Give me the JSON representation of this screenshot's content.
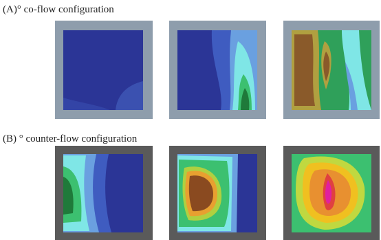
{
  "figure": {
    "rows": [
      {
        "label": "(A)° co-flow configuration"
      },
      {
        "label": "(B) ° counter-flow configuration"
      }
    ]
  }
}
